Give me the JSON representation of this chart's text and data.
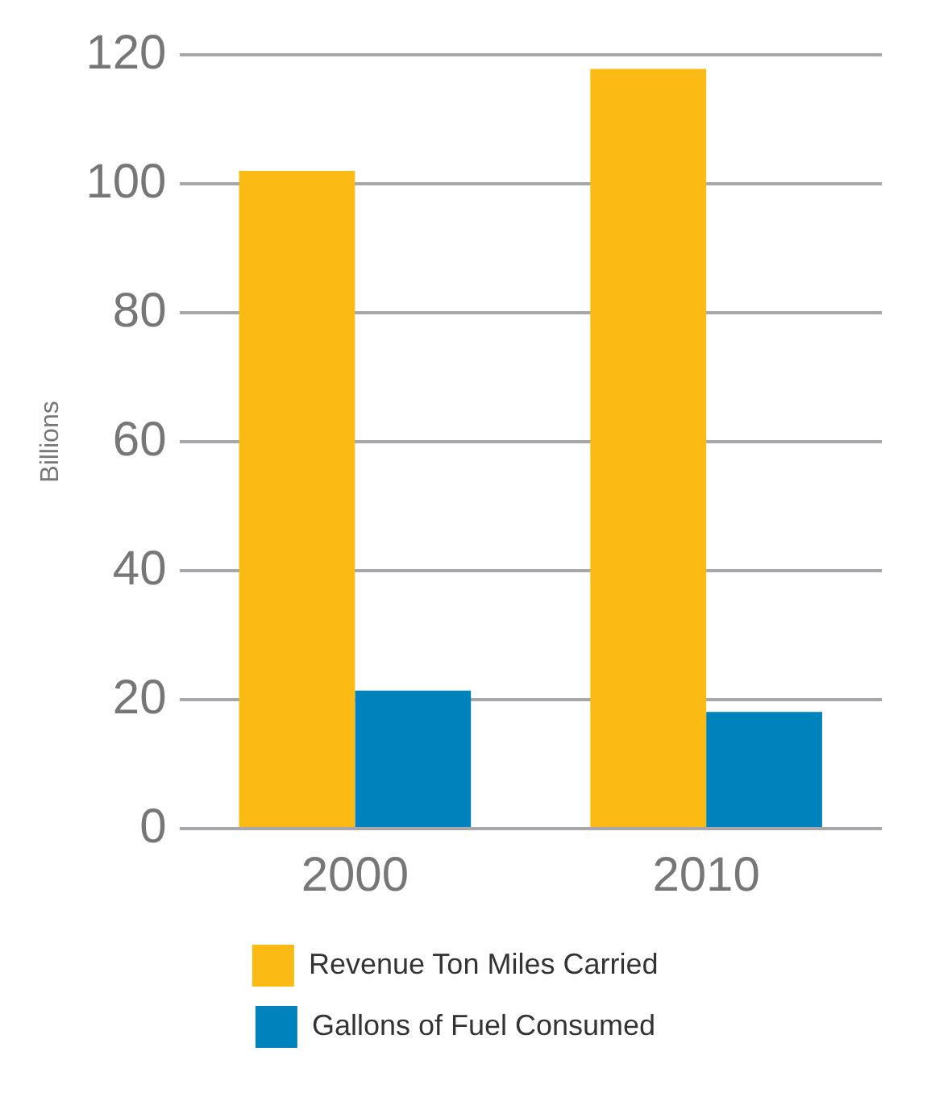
{
  "chart_data": {
    "type": "bar",
    "ylabel": "Billions",
    "categories": [
      "2000",
      "2010"
    ],
    "series": [
      {
        "name": "Revenue Ton Miles Carried",
        "color": "#fbbb14",
        "values": [
          102,
          117.8
        ]
      },
      {
        "name": "Gallons of Fuel Consumed",
        "color": "#0083bd",
        "values": [
          21.4,
          18.1
        ]
      }
    ],
    "ylim": [
      0,
      120
    ],
    "yticks": [
      0,
      20,
      40,
      60,
      80,
      100,
      120
    ],
    "grid": "y",
    "legend": "bottom"
  }
}
